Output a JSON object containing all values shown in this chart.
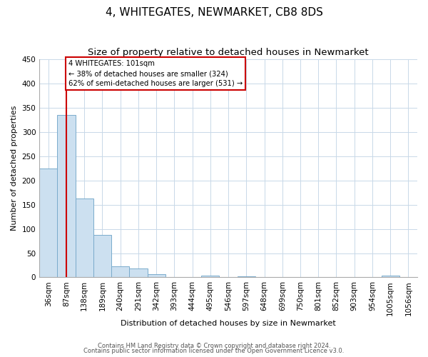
{
  "title": "4, WHITEGATES, NEWMARKET, CB8 8DS",
  "subtitle": "Size of property relative to detached houses in Newmarket",
  "xlabel": "Distribution of detached houses by size in Newmarket",
  "ylabel": "Number of detached properties",
  "bar_labels": [
    "36sqm",
    "87sqm",
    "138sqm",
    "189sqm",
    "240sqm",
    "291sqm",
    "342sqm",
    "393sqm",
    "444sqm",
    "495sqm",
    "546sqm",
    "597sqm",
    "648sqm",
    "699sqm",
    "750sqm",
    "801sqm",
    "852sqm",
    "903sqm",
    "954sqm",
    "1005sqm",
    "1056sqm"
  ],
  "bar_values": [
    225,
    335,
    163,
    88,
    23,
    18,
    7,
    0,
    0,
    3,
    0,
    2,
    0,
    0,
    0,
    0,
    0,
    0,
    0,
    3,
    0
  ],
  "bar_fill_color": "#cce0f0",
  "bar_edge_color": "#7aabcc",
  "marker_label": "4 WHITEGATES: 101sqm",
  "annotation_line1": "← 38% of detached houses are smaller (324)",
  "annotation_line2": "62% of semi-detached houses are larger (531) →",
  "vline_color": "#cc0000",
  "vline_x_index": 1,
  "ylim": [
    0,
    450
  ],
  "yticks": [
    0,
    50,
    100,
    150,
    200,
    250,
    300,
    350,
    400,
    450
  ],
  "footer_line1": "Contains HM Land Registry data © Crown copyright and database right 2024.",
  "footer_line2": "Contains public sector information licensed under the Open Government Licence v3.0.",
  "bg_color": "#ffffff",
  "grid_color": "#c8d8e8",
  "title_fontsize": 11,
  "subtitle_fontsize": 9.5,
  "axis_label_fontsize": 8,
  "tick_fontsize": 7.5,
  "ylabel_fontsize": 8
}
